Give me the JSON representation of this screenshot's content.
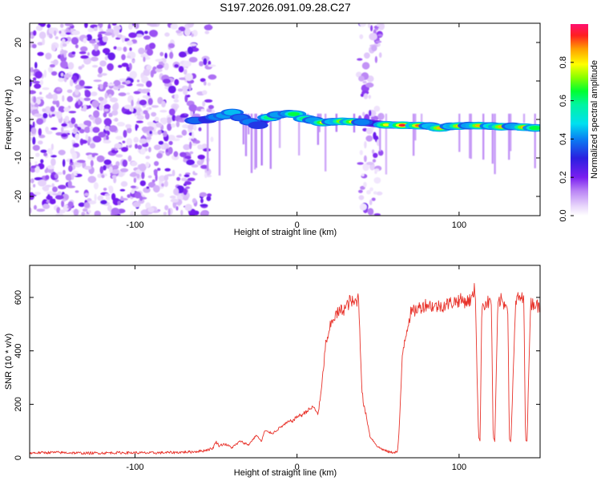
{
  "title": "S197.2026.091.09.28.C27",
  "colors": {
    "snr_line": "#e8322a",
    "background": "#ffffff",
    "axis": "#000000"
  },
  "chart_data": [
    {
      "type": "heatmap",
      "xlabel": "Height of straight line (km)",
      "ylabel": "Frequency (Hz)",
      "xlim": [
        -165,
        150
      ],
      "ylim": [
        -25,
        25
      ],
      "x_ticks": [
        -100,
        0,
        100
      ],
      "x_tick_labels": [
        "-100",
        "0",
        "100"
      ],
      "y_ticks": [
        -20,
        -10,
        0,
        10,
        20
      ],
      "y_tick_labels": [
        "-20",
        "-10",
        "0",
        "10",
        "20"
      ],
      "colorbar": {
        "label": "Normalized spectral amplitude",
        "range": [
          0,
          1
        ],
        "ticks": [
          0.0,
          0.2,
          0.4,
          0.6,
          0.8
        ],
        "tick_labels": [
          "0.0",
          "0.2",
          "0.4",
          "0.6",
          "0.8"
        ]
      },
      "noise_regions_km": [
        [
          -165,
          -62
        ],
        [
          -60,
          -52
        ],
        [
          38,
          52
        ]
      ],
      "signal_track": [
        {
          "km": -63,
          "hz": -0.3,
          "amp": 0.45
        },
        {
          "km": -55,
          "hz": 0.0,
          "amp": 0.35
        },
        {
          "km": -50,
          "hz": 0.6,
          "amp": 0.5
        },
        {
          "km": -45,
          "hz": 1.0,
          "amp": 0.55
        },
        {
          "km": -40,
          "hz": 1.8,
          "amp": 0.6
        },
        {
          "km": -35,
          "hz": 0.5,
          "amp": 0.45
        },
        {
          "km": -29,
          "hz": -0.6,
          "amp": 0.5
        },
        {
          "km": -24,
          "hz": -1.5,
          "amp": 0.4
        },
        {
          "km": -17,
          "hz": 0.5,
          "amp": 0.7
        },
        {
          "km": -12,
          "hz": 1.2,
          "amp": 0.55
        },
        {
          "km": -5,
          "hz": 1.5,
          "amp": 0.6
        },
        {
          "km": -2,
          "hz": 1.4,
          "amp": 0.75
        },
        {
          "km": 5,
          "hz": 0.2,
          "amp": 0.7
        },
        {
          "km": 10,
          "hz": -0.2,
          "amp": 0.55
        },
        {
          "km": 16,
          "hz": -0.8,
          "amp": 0.8
        },
        {
          "km": 22,
          "hz": -0.6,
          "amp": 0.6
        },
        {
          "km": 28,
          "hz": -0.5,
          "amp": 0.85
        },
        {
          "km": 34,
          "hz": -0.6,
          "amp": 0.8
        },
        {
          "km": 40,
          "hz": -0.7,
          "amp": 0.5
        },
        {
          "km": 55,
          "hz": -1.4,
          "amp": 0.8
        },
        {
          "km": 65,
          "hz": -1.5,
          "amp": 0.95
        },
        {
          "km": 75,
          "hz": -1.6,
          "amp": 0.9
        },
        {
          "km": 82,
          "hz": -1.7,
          "amp": 0.6
        },
        {
          "km": 88,
          "hz": -2.2,
          "amp": 0.85
        },
        {
          "km": 95,
          "hz": -1.8,
          "amp": 0.6
        },
        {
          "km": 100,
          "hz": -1.7,
          "amp": 0.85
        },
        {
          "km": 106,
          "hz": -1.6,
          "amp": 0.55
        },
        {
          "km": 112,
          "hz": -1.6,
          "amp": 0.85
        },
        {
          "km": 120,
          "hz": -1.7,
          "amp": 0.65
        },
        {
          "km": 126,
          "hz": -1.9,
          "amp": 0.85
        },
        {
          "km": 133,
          "hz": -1.8,
          "amp": 0.55
        },
        {
          "km": 140,
          "hz": -2.0,
          "amp": 0.85
        },
        {
          "km": 147,
          "hz": -2.2,
          "amp": 0.75
        }
      ]
    },
    {
      "type": "line",
      "xlabel": "Height of straight line (km)",
      "ylabel": "SNR (10 * v/v)",
      "xlim": [
        -165,
        150
      ],
      "ylim": [
        0,
        720
      ],
      "x_ticks": [
        -100,
        0,
        100
      ],
      "x_tick_labels": [
        "-100",
        "0",
        "100"
      ],
      "y_ticks": [
        0,
        200,
        400,
        600
      ],
      "y_tick_labels": [
        "0",
        "200",
        "400",
        "600"
      ],
      "series": [
        {
          "name": "SNR",
          "x": [
            -165,
            -150,
            -130,
            -110,
            -90,
            -75,
            -65,
            -58,
            -52,
            -50,
            -48,
            -45,
            -40,
            -35,
            -30,
            -25,
            -22,
            -20,
            -15,
            -10,
            -5,
            -2,
            0,
            3,
            6,
            8,
            10,
            13,
            15,
            17,
            18,
            19,
            20,
            22,
            25,
            28,
            30,
            33,
            35,
            38,
            40,
            41,
            43,
            45,
            50,
            55,
            58,
            62,
            63,
            64,
            65,
            67,
            70,
            75,
            80,
            85,
            90,
            95,
            100,
            105,
            108,
            110,
            111,
            112,
            113,
            114,
            117,
            120,
            121,
            122,
            124,
            126,
            128,
            130,
            131,
            132,
            135,
            138,
            140,
            141,
            142,
            144,
            146,
            150
          ],
          "y": [
            18,
            20,
            17,
            19,
            18,
            20,
            22,
            26,
            35,
            60,
            45,
            52,
            38,
            62,
            48,
            85,
            60,
            100,
            92,
            115,
            135,
            140,
            155,
            160,
            175,
            182,
            190,
            165,
            250,
            380,
            450,
            430,
            480,
            520,
            540,
            555,
            560,
            590,
            575,
            600,
            260,
            200,
            150,
            80,
            40,
            25,
            20,
            22,
            100,
            240,
            390,
            460,
            540,
            560,
            575,
            565,
            570,
            580,
            590,
            585,
            595,
            640,
            350,
            80,
            60,
            570,
            580,
            585,
            80,
            60,
            580,
            590,
            575,
            585,
            70,
            60,
            590,
            600,
            585,
            70,
            60,
            575,
            580,
            560
          ]
        }
      ]
    }
  ]
}
